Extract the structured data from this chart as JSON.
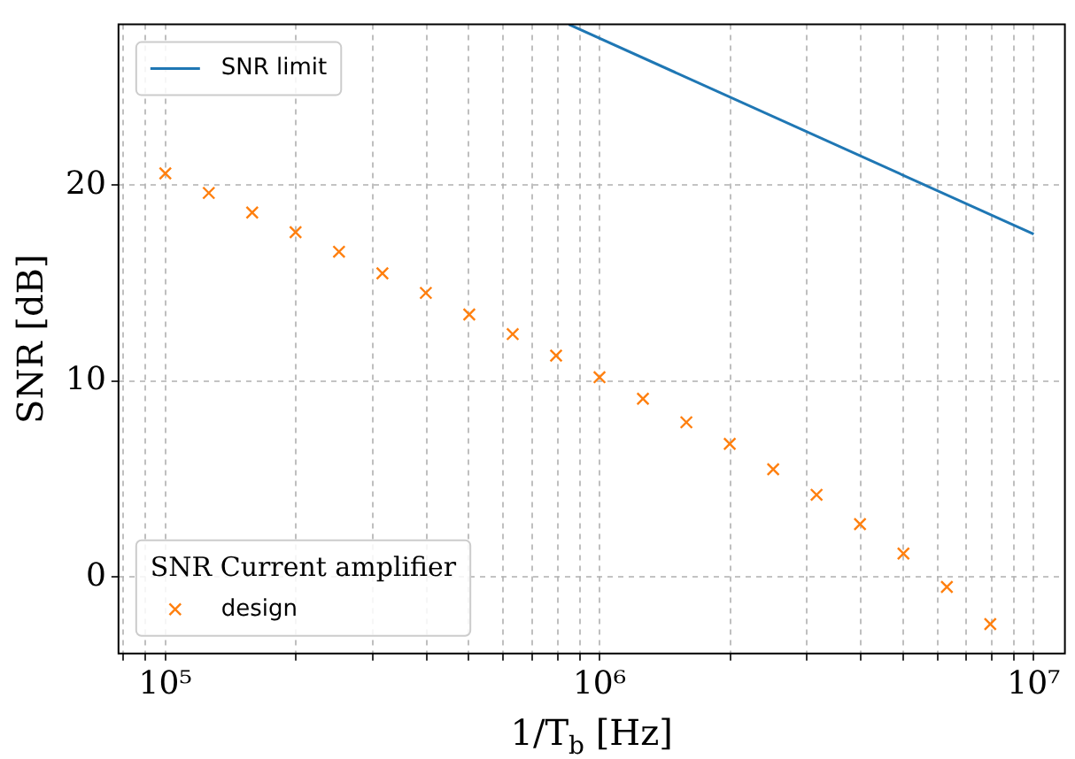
{
  "chart_data": {
    "type": "scatter",
    "xlabel": "1/T$_{b}$ [Hz]",
    "ylabel": "SNR [dB]",
    "legend_title": "SNR Current amplifier",
    "log": "x",
    "grid": true,
    "legend": "top left",
    "xlim": [
      78000,
      11800000
    ],
    "ylim": [
      -3.9,
      28.2
    ],
    "xticks": [
      {
        "value": 80000,
        "label": null
      },
      {
        "value": 90000,
        "label": null
      },
      {
        "value": 100000,
        "label": "10⁵"
      },
      {
        "value": 200000,
        "label": null
      },
      {
        "value": 300000,
        "label": null
      },
      {
        "value": 400000,
        "label": null
      },
      {
        "value": 500000,
        "label": null
      },
      {
        "value": 600000,
        "label": null
      },
      {
        "value": 700000,
        "label": null
      },
      {
        "value": 800000,
        "label": null
      },
      {
        "value": 900000,
        "label": null
      },
      {
        "value": 1000000,
        "label": "10⁶"
      },
      {
        "value": 2000000,
        "label": null
      },
      {
        "value": 3000000,
        "label": null
      },
      {
        "value": 4000000,
        "label": null
      },
      {
        "value": 5000000,
        "label": null
      },
      {
        "value": 6000000,
        "label": null
      },
      {
        "value": 7000000,
        "label": null
      },
      {
        "value": 8000000,
        "label": null
      },
      {
        "value": 9000000,
        "label": null
      },
      {
        "value": 10000000,
        "label": "10⁷"
      }
    ],
    "yticks": [
      0,
      10,
      20
    ],
    "series": [
      {
        "name": "SNR limit",
        "type": "line",
        "color": "#1f77b4",
        "marker": "none",
        "line_style": "solid",
        "x": [
          850000,
          10000000
        ],
        "values": [
          28.2,
          17.5
        ]
      },
      {
        "name": "design",
        "color": "#ff7f0e",
        "marker": "cross",
        "x": [
          100000,
          125900,
          158500,
          199500,
          251200,
          316200,
          398100,
          501200,
          631000,
          794300,
          1000000,
          1259000,
          1585000,
          1995000,
          2512000,
          3162000,
          3981000,
          5012000,
          6310000,
          7943000
        ],
        "values": [
          20.6,
          19.6,
          18.6,
          17.6,
          16.6,
          15.5,
          14.5,
          13.4,
          12.4,
          11.3,
          10.2,
          9.1,
          7.9,
          6.8,
          5.5,
          4.2,
          2.7,
          1.2,
          -0.5,
          -2.4
        ]
      }
    ]
  }
}
